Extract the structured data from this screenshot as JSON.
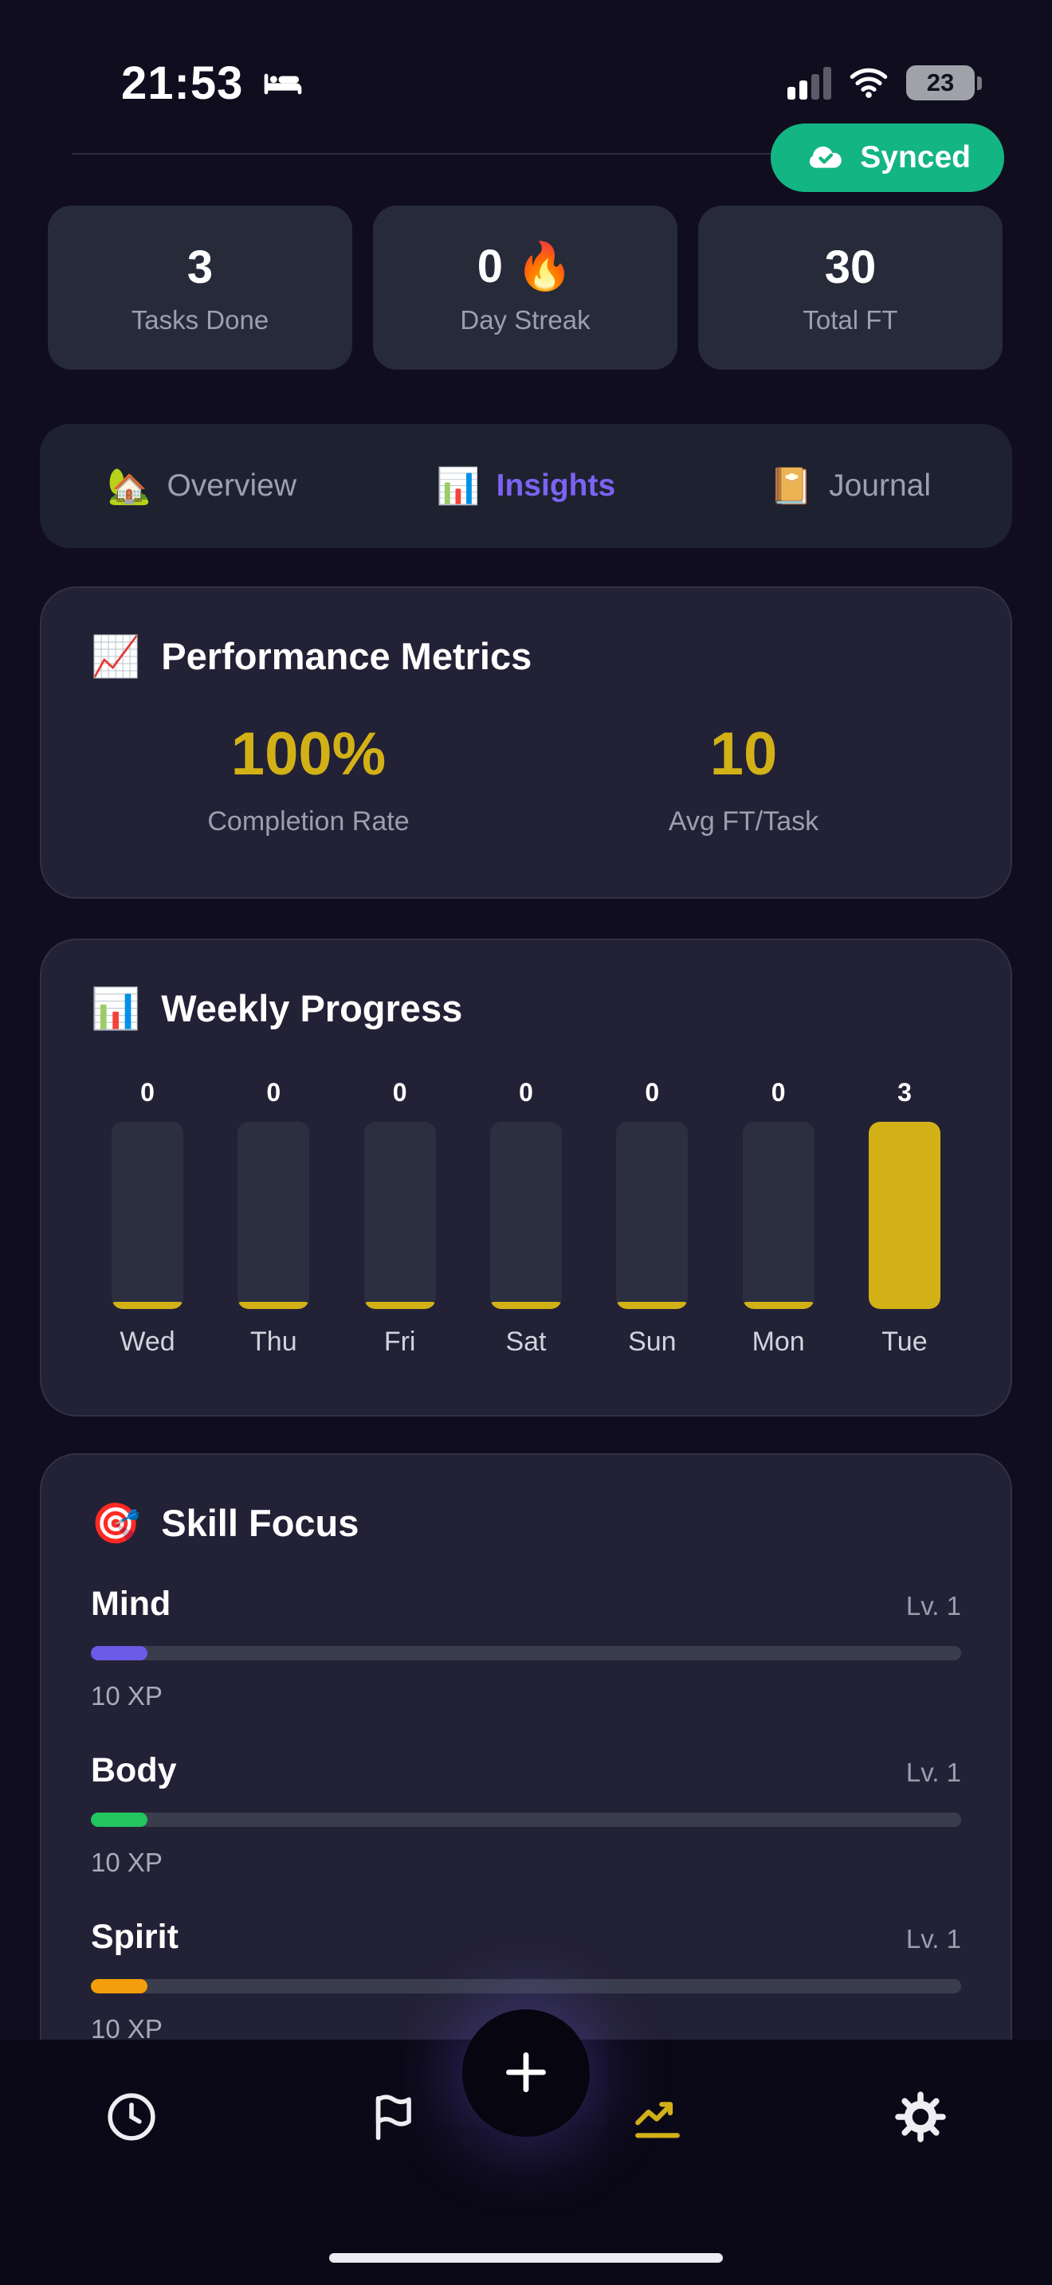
{
  "status_bar": {
    "time": "21:53",
    "battery_level": "23"
  },
  "sync_badge": {
    "label": "Synced",
    "color": "#13b583"
  },
  "stat_cards": [
    {
      "value": "3",
      "label": "Tasks Done"
    },
    {
      "value": "0 🔥",
      "label": "Day Streak"
    },
    {
      "value": "30",
      "label": "Total FT"
    }
  ],
  "view_tabs": [
    {
      "icon": "🏡",
      "label": "Overview",
      "active": false
    },
    {
      "icon": "📊",
      "label": "Insights",
      "active": true
    },
    {
      "icon": "📔",
      "label": "Journal",
      "active": false
    }
  ],
  "performance": {
    "icon": "📈",
    "title": "Performance Metrics",
    "metrics": [
      {
        "value": "100%",
        "label": "Completion Rate"
      },
      {
        "value": "10",
        "label": "Avg FT/Task"
      }
    ]
  },
  "chart_data": {
    "type": "bar",
    "icon": "📊",
    "title": "Weekly Progress",
    "categories": [
      "Wed",
      "Thu",
      "Fri",
      "Sat",
      "Sun",
      "Mon",
      "Tue"
    ],
    "values": [
      0,
      0,
      0,
      0,
      0,
      0,
      3
    ],
    "ylim": [
      0,
      3
    ],
    "bar_color": "#d2b117",
    "track_color": "#2c2f3f",
    "grid": false,
    "legend": false
  },
  "skills": {
    "icon": "🎯",
    "title": "Skill Focus",
    "items": [
      {
        "name": "Mind",
        "level": "Lv. 1",
        "xp": "10 XP",
        "color": "#6b5be6",
        "progress_pct": 6.5
      },
      {
        "name": "Body",
        "level": "Lv. 1",
        "xp": "10 XP",
        "color": "#22c55e",
        "progress_pct": 6.5
      },
      {
        "name": "Spirit",
        "level": "Lv. 1",
        "xp": "10 XP",
        "color": "#f59e0b",
        "progress_pct": 6.5
      }
    ]
  },
  "bottom_nav": {
    "items": [
      {
        "icon": "clock-icon",
        "active": false
      },
      {
        "icon": "flag-icon",
        "active": false
      },
      {
        "icon": "chart-icon",
        "active": true
      },
      {
        "icon": "gear-icon",
        "active": false
      }
    ],
    "active_color": "#d2b117",
    "inactive_color": "#eceef2"
  },
  "colors": {
    "background": "#100d1f",
    "card": "#232136",
    "stat_card": "#272a39",
    "accent_gold": "#d2b117",
    "accent_purple": "#7c63f2",
    "synced_green": "#13b583"
  }
}
